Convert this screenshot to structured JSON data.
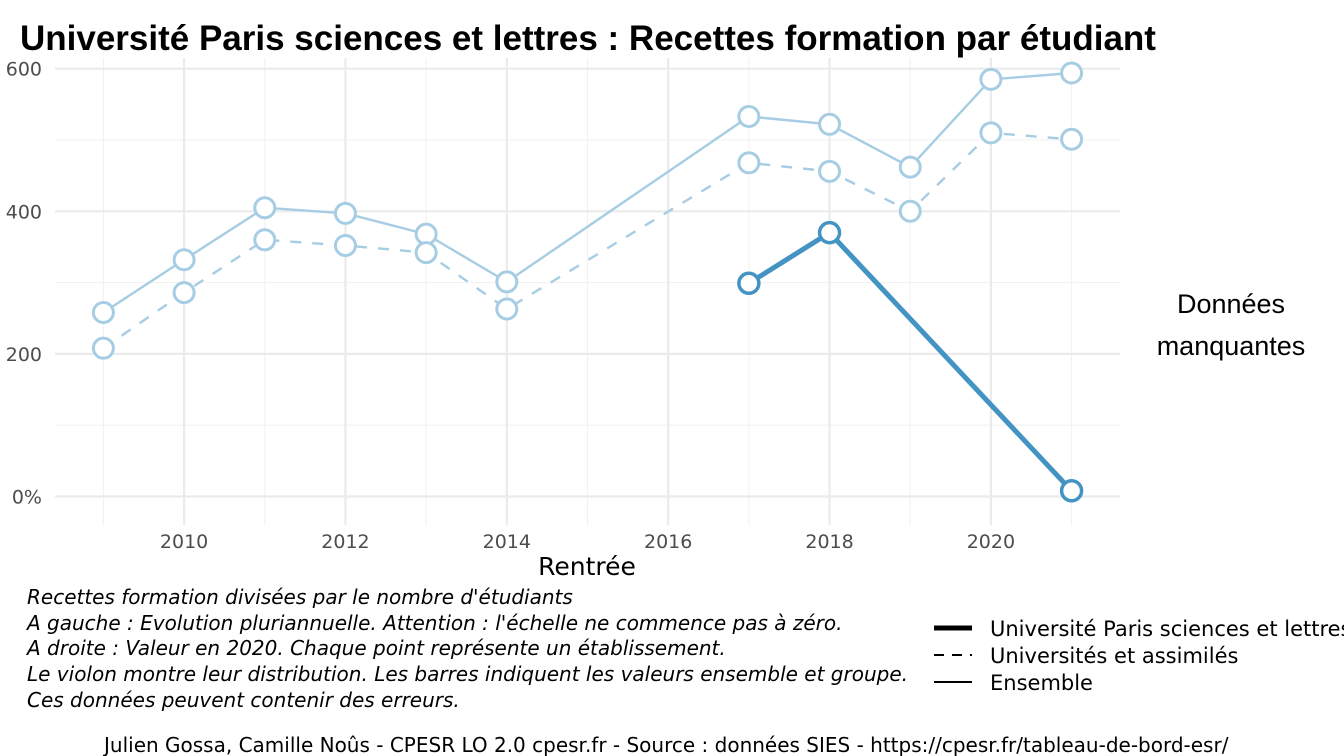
{
  "chart_data": {
    "type": "line",
    "title": "Université Paris sciences et lettres  :  Recettes formation par étudiant",
    "xlabel": "Rentrée",
    "ylabel": "",
    "xlim": [
      2008.4,
      2021.6
    ],
    "ylim": [
      -40,
      615
    ],
    "x_ticks": [
      2010,
      2012,
      2014,
      2016,
      2018,
      2020
    ],
    "y_ticks": [
      {
        "value": 0,
        "label": "0%"
      },
      {
        "value": 200,
        "label": "200"
      },
      {
        "value": 400,
        "label": "400"
      },
      {
        "value": 600,
        "label": "600"
      }
    ],
    "grid": true,
    "series": [
      {
        "name": "Ensemble",
        "style": "solid",
        "color": "#a6cde3",
        "x": [
          2009,
          2010,
          2011,
          2012,
          2013,
          2014,
          2017,
          2018,
          2019,
          2020,
          2021
        ],
        "y": [
          258,
          332,
          405,
          397,
          368,
          301,
          533,
          522,
          462,
          585,
          594
        ]
      },
      {
        "name": "Universités et assimilés",
        "style": "dashed",
        "color": "#a6cde3",
        "x": [
          2009,
          2010,
          2011,
          2012,
          2013,
          2014,
          2017,
          2018,
          2019,
          2020,
          2021
        ],
        "y": [
          208,
          286,
          360,
          352,
          342,
          263,
          468,
          456,
          400,
          510,
          501
        ]
      },
      {
        "name": "Université Paris sciences et lettres",
        "style": "thick",
        "color": "#4393c3",
        "x": [
          2017,
          2018,
          2021
        ],
        "y": [
          299,
          370,
          8
        ]
      }
    ],
    "legend_position": "bottom-right",
    "side_note": [
      "Données",
      "manquantes"
    ],
    "caption": [
      "Recettes formation divisées par le nombre d'étudiants",
      "A gauche : Evolution pluriannuelle. Attention : l'échelle ne commence pas à zéro.",
      "A droite : Valeur en 2020. Chaque point représente un établissement.",
      "Le violon montre leur distribution. Les barres indiquent les valeurs ensemble et groupe.",
      "Ces données peuvent contenir des erreurs."
    ],
    "credit": "Julien Gossa, Camille Noûs - CPESR LO 2.0 cpesr.fr - Source : données SIES - https://cpesr.fr/tableau-de-bord-esr/"
  }
}
